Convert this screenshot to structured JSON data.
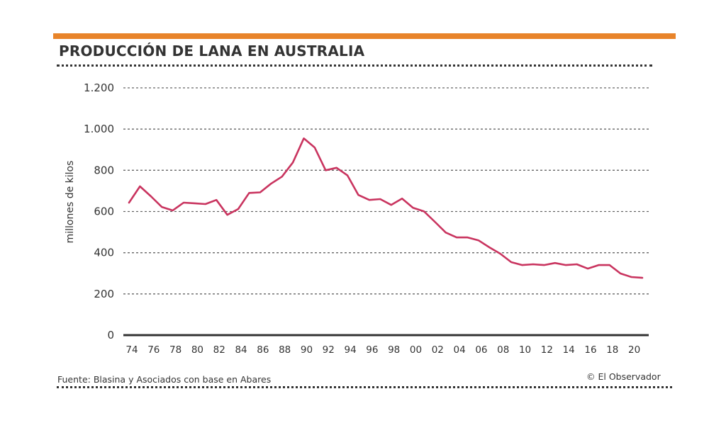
{
  "header": {
    "title": "PRODUCCIÓN DE LANA EN AUSTRALIA",
    "accent_color": "#e8842a"
  },
  "footer": {
    "source": "Fuente: Blasina y Asociados con base en Abares",
    "credit": "© El Observador"
  },
  "chart_data": {
    "type": "line",
    "title": "PRODUCCIÓN DE LANA EN AUSTRALIA",
    "xlabel": "",
    "ylabel": "millones de kilos",
    "ylim": [
      0,
      1200
    ],
    "yticks": [
      0,
      200,
      400,
      600,
      800,
      1000,
      1200
    ],
    "ytick_labels": [
      "0",
      "200",
      "400",
      "600",
      "800",
      "1.000",
      "1.200"
    ],
    "xlim": [
      1974,
      2021
    ],
    "xticks": [
      1974,
      1976,
      1978,
      1980,
      1982,
      1984,
      1986,
      1988,
      1990,
      1992,
      1994,
      1996,
      1998,
      2000,
      2002,
      2004,
      2006,
      2008,
      2010,
      2012,
      2014,
      2016,
      2018,
      2020
    ],
    "xtick_labels": [
      "74",
      "76",
      "78",
      "80",
      "82",
      "84",
      "86",
      "88",
      "90",
      "92",
      "94",
      "96",
      "98",
      "00",
      "02",
      "04",
      "06",
      "08",
      "10",
      "12",
      "14",
      "16",
      "18",
      "20"
    ],
    "grid": "horizontal-dotted",
    "legend": "none",
    "series": [
      {
        "name": "Producción de lana",
        "color": "#c9345f",
        "x": [
          1974,
          1975,
          1976,
          1977,
          1978,
          1979,
          1980,
          1981,
          1982,
          1983,
          1984,
          1985,
          1986,
          1987,
          1988,
          1989,
          1990,
          1991,
          1992,
          1993,
          1994,
          1995,
          1996,
          1997,
          1998,
          1999,
          2000,
          2001,
          2002,
          2003,
          2004,
          2005,
          2006,
          2007,
          2008,
          2009,
          2010,
          2011,
          2012,
          2013,
          2014,
          2015,
          2016,
          2017,
          2018,
          2019,
          2020,
          2021
        ],
        "values": [
          643,
          722,
          674,
          622,
          605,
          643,
          640,
          636,
          656,
          584,
          612,
          690,
          693,
          735,
          769,
          838,
          955,
          910,
          800,
          812,
          775,
          680,
          656,
          660,
          632,
          663,
          618,
          601,
          550,
          498,
          474,
          474,
          460,
          426,
          395,
          354,
          340,
          344,
          340,
          350,
          340,
          344,
          323,
          340,
          340,
          299,
          282,
          278
        ]
      }
    ]
  }
}
